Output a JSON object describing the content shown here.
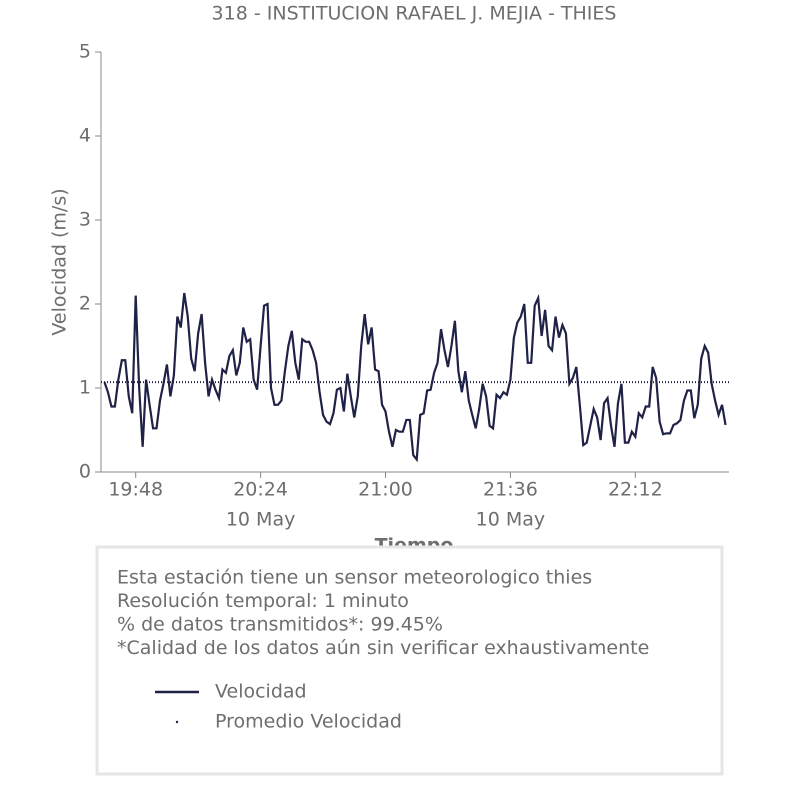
{
  "chart_data": {
    "type": "line",
    "title": "318 - INSTITUCION RAFAEL J. MEJIA - THIES",
    "xlabel": "Tiempo",
    "ylabel": "Velocidad (m/s)",
    "x": [
      "19:39",
      "19:40",
      "19:41",
      "19:42",
      "19:43",
      "19:44",
      "19:45",
      "19:46",
      "19:47",
      "19:48",
      "19:49",
      "19:50",
      "19:51",
      "19:52",
      "19:53",
      "19:54",
      "19:55",
      "19:56",
      "19:57",
      "19:58",
      "19:59",
      "20:00",
      "20:01",
      "20:02",
      "20:03",
      "20:04",
      "20:05",
      "20:06",
      "20:07",
      "20:08",
      "20:09",
      "20:10",
      "20:11",
      "20:12",
      "20:13",
      "20:14",
      "20:15",
      "20:16",
      "20:17",
      "20:18",
      "20:19",
      "20:20",
      "20:21",
      "20:22",
      "20:23",
      "20:24",
      "20:25",
      "20:26",
      "20:27",
      "20:28",
      "20:29",
      "20:30",
      "20:31",
      "20:32",
      "20:33",
      "20:34",
      "20:35",
      "20:36",
      "20:37",
      "20:38",
      "20:39",
      "20:40",
      "20:41",
      "20:42",
      "20:43",
      "20:44",
      "20:45",
      "20:46",
      "20:47",
      "20:48",
      "20:49",
      "20:50",
      "20:51",
      "20:52",
      "20:53",
      "20:54",
      "20:55",
      "20:56",
      "20:57",
      "20:58",
      "20:59",
      "21:00",
      "21:01",
      "21:02",
      "21:03",
      "21:04",
      "21:05",
      "21:06",
      "21:07",
      "21:08",
      "21:09",
      "21:10",
      "21:11",
      "21:12",
      "21:13",
      "21:14",
      "21:15",
      "21:16",
      "21:17",
      "21:18",
      "21:19",
      "21:20",
      "21:21",
      "21:22",
      "21:23",
      "21:24",
      "21:25",
      "21:26",
      "21:27",
      "21:28",
      "21:29",
      "21:30",
      "21:31",
      "21:32",
      "21:33",
      "21:34",
      "21:35",
      "21:36",
      "21:37",
      "21:38",
      "21:39",
      "21:40",
      "21:41",
      "21:42",
      "21:43",
      "21:44",
      "21:45",
      "21:46",
      "21:47",
      "21:48",
      "21:49",
      "21:50",
      "21:51",
      "21:52",
      "21:53",
      "21:54",
      "21:55",
      "21:56",
      "21:57",
      "21:58",
      "21:59",
      "22:00",
      "22:01",
      "22:02",
      "22:03",
      "22:04",
      "22:05",
      "22:06",
      "22:07",
      "22:08",
      "22:09",
      "22:10",
      "22:11",
      "22:12",
      "22:13",
      "22:14",
      "22:15",
      "22:16",
      "22:17",
      "22:18",
      "22:19",
      "22:20",
      "22:21",
      "22:22",
      "22:23",
      "22:24",
      "22:25",
      "22:26",
      "22:27",
      "22:28",
      "22:29",
      "22:30",
      "22:31",
      "22:32",
      "22:33",
      "22:34",
      "22:35",
      "22:36",
      "22:37",
      "22:38"
    ],
    "series": [
      {
        "name": "Velocidad",
        "color": "#1f2146",
        "values": [
          1.07,
          0.95,
          0.78,
          0.78,
          1.1,
          1.33,
          1.33,
          0.9,
          0.7,
          2.1,
          1.0,
          0.3,
          1.1,
          0.8,
          0.52,
          0.52,
          0.85,
          1.05,
          1.28,
          0.9,
          1.15,
          1.85,
          1.72,
          2.13,
          1.85,
          1.35,
          1.2,
          1.65,
          1.88,
          1.3,
          0.9,
          1.1,
          0.98,
          0.88,
          1.22,
          1.18,
          1.38,
          1.45,
          1.15,
          1.3,
          1.72,
          1.55,
          1.58,
          1.1,
          0.98,
          1.5,
          1.98,
          2.0,
          1.0,
          0.8,
          0.8,
          0.85,
          1.2,
          1.5,
          1.68,
          1.3,
          1.1,
          1.58,
          1.55,
          1.55,
          1.45,
          1.3,
          0.95,
          0.68,
          0.6,
          0.57,
          0.7,
          0.98,
          1.0,
          0.72,
          1.17,
          0.9,
          0.65,
          0.9,
          1.5,
          1.88,
          1.52,
          1.72,
          1.22,
          1.2,
          0.8,
          0.72,
          0.48,
          0.3,
          0.5,
          0.48,
          0.48,
          0.62,
          0.62,
          0.2,
          0.15,
          0.68,
          0.7,
          0.97,
          0.98,
          1.18,
          1.3,
          1.7,
          1.45,
          1.25,
          1.5,
          1.8,
          1.2,
          0.95,
          1.2,
          0.85,
          0.68,
          0.52,
          0.75,
          1.05,
          0.9,
          0.55,
          0.52,
          0.92,
          0.88,
          0.95,
          0.92,
          1.1,
          1.6,
          1.78,
          1.85,
          2.0,
          1.3,
          1.3,
          1.98,
          2.07,
          1.62,
          1.93,
          1.5,
          1.45,
          1.85,
          1.6,
          1.75,
          1.65,
          1.05,
          1.12,
          1.25,
          0.8,
          0.32,
          0.35,
          0.55,
          0.75,
          0.65,
          0.38,
          0.82,
          0.88,
          0.55,
          0.3,
          0.82,
          1.05,
          0.35,
          0.35,
          0.48,
          0.42,
          0.7,
          0.65,
          0.78,
          0.78,
          1.25,
          1.12,
          0.6,
          0.45,
          0.46,
          0.46,
          0.56,
          0.58,
          0.62,
          0.85,
          0.97,
          0.97,
          0.64,
          0.8,
          1.35,
          1.5,
          1.42,
          1.05,
          0.85,
          0.68,
          0.8,
          0.56
        ]
      },
      {
        "name": "Promedio Velocidad",
        "color": "#1f2146",
        "style": "dotted",
        "value": 1.07
      }
    ],
    "xlim": [
      "19:38",
      "22:39"
    ],
    "xticks": [
      {
        "value": "19:48",
        "label": "19:48"
      },
      {
        "value": "20:24",
        "label": "20:24",
        "date": "10 May"
      },
      {
        "value": "21:00",
        "label": "21:00"
      },
      {
        "value": "21:36",
        "label": "21:36",
        "date": "10 May"
      },
      {
        "value": "22:12",
        "label": "22:12"
      }
    ],
    "ylim": [
      0,
      5
    ],
    "yticks": [
      0,
      1,
      2,
      3,
      4,
      5
    ],
    "grid": false,
    "info": [
      "Esta estación tiene un sensor meteorologico thies",
      "Resolución temporal: 1 minuto",
      "% de datos transmitidos*: 99.45%",
      "*Calidad de los datos aún sin verificar exhaustivamente"
    ]
  }
}
